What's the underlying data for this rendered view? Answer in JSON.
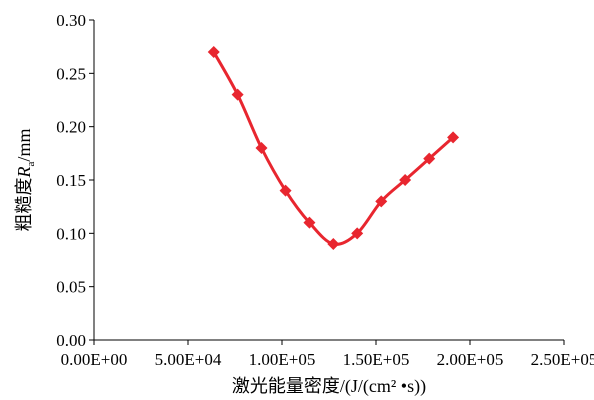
{
  "chart_data": {
    "type": "line",
    "title": "",
    "xlabel": "激光能量密度/(J/(cm² •s))",
    "ylabel": {
      "prefix": "粗糙度",
      "symbol": "R",
      "subscript": "a",
      "suffix": "/mm"
    },
    "xlim": [
      0,
      250000
    ],
    "ylim": [
      0,
      0.3
    ],
    "x_ticks": [
      0,
      50000,
      100000,
      150000,
      200000,
      250000
    ],
    "x_tick_labels": [
      "0.00E+00",
      "5.00E+04",
      "1.00E+05",
      "1.50E+05",
      "2.00E+05",
      "2.50E+05"
    ],
    "y_ticks": [
      0,
      0.05,
      0.1,
      0.15,
      0.2,
      0.25,
      0.3
    ],
    "y_tick_labels": [
      "0.00",
      "0.05",
      "0.10",
      "0.15",
      "0.20",
      "0.25",
      "0.30"
    ],
    "grid": false,
    "legend": "none",
    "color": "#e8262f",
    "marker": "diamond",
    "smooth": true,
    "series": [
      {
        "x": [
          63700,
          76400,
          89100,
          101900,
          114600,
          127300,
          140000,
          152800,
          165500,
          178300,
          191000
        ],
        "y": [
          0.27,
          0.23,
          0.18,
          0.14,
          0.11,
          0.09,
          0.1,
          0.13,
          0.15,
          0.17,
          0.19
        ]
      }
    ]
  }
}
